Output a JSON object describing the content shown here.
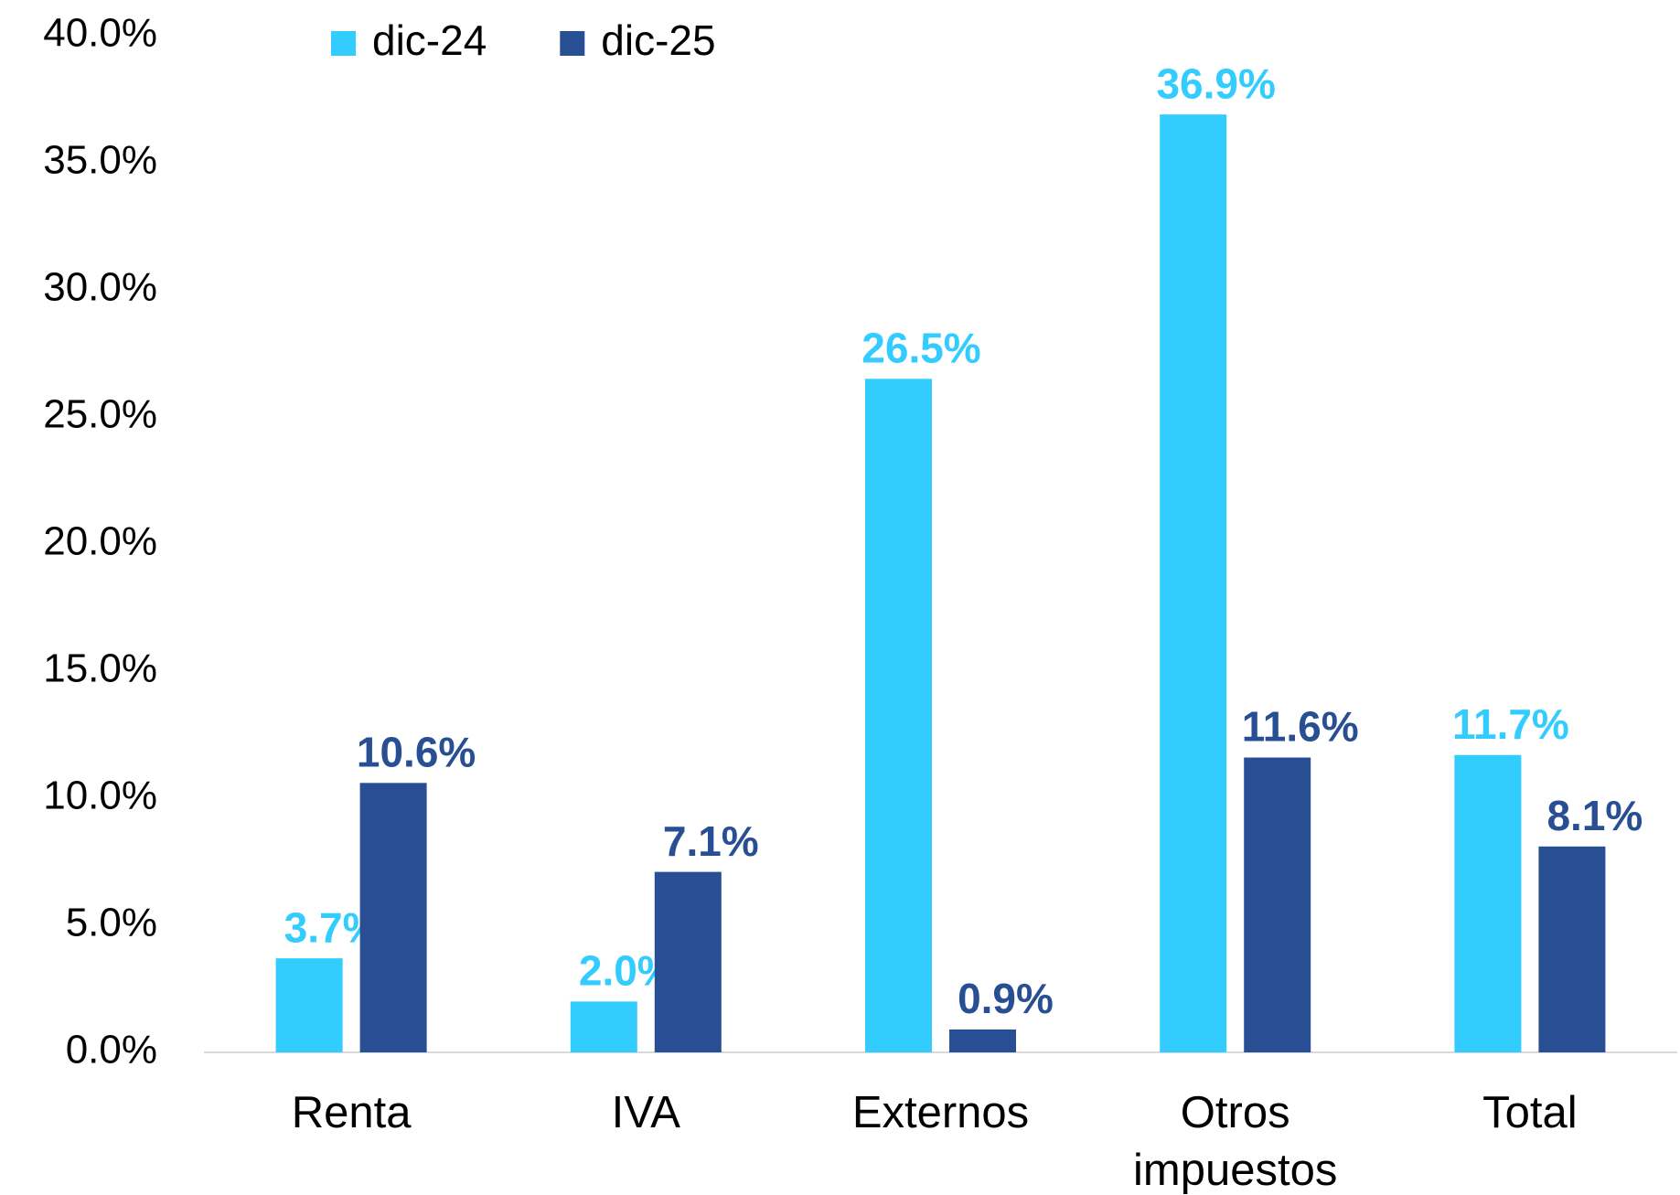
{
  "chart_data": {
    "type": "bar",
    "categories": [
      "Renta",
      "IVA",
      "Externos",
      "Otros impuestos",
      "Total"
    ],
    "series": [
      {
        "name": "dic-24",
        "color": "#33ccff",
        "values": [
          3.7,
          2.0,
          26.5,
          36.9,
          11.7
        ],
        "value_labels": [
          "3.7%",
          "2.0%",
          "26.5%",
          "36.9%",
          "11.7%"
        ]
      },
      {
        "name": "dic-25",
        "color": "#284f94",
        "values": [
          10.6,
          7.1,
          0.9,
          11.6,
          8.1
        ],
        "value_labels": [
          "10.6%",
          "7.1%",
          "0.9%",
          "11.6%",
          "8.1%"
        ]
      }
    ],
    "ylim": [
      0,
      40
    ],
    "yticks": [
      {
        "value": 0,
        "label": "0.0%"
      },
      {
        "value": 5,
        "label": "5.0%"
      },
      {
        "value": 10,
        "label": "10.0%"
      },
      {
        "value": 15,
        "label": "15.0%"
      },
      {
        "value": 20,
        "label": "20.0%"
      },
      {
        "value": 25,
        "label": "25.0%"
      },
      {
        "value": 30,
        "label": "30.0%"
      },
      {
        "value": 35,
        "label": "35.0%"
      },
      {
        "value": 40,
        "label": "40.0%"
      }
    ],
    "grid": false,
    "legend": "top"
  }
}
